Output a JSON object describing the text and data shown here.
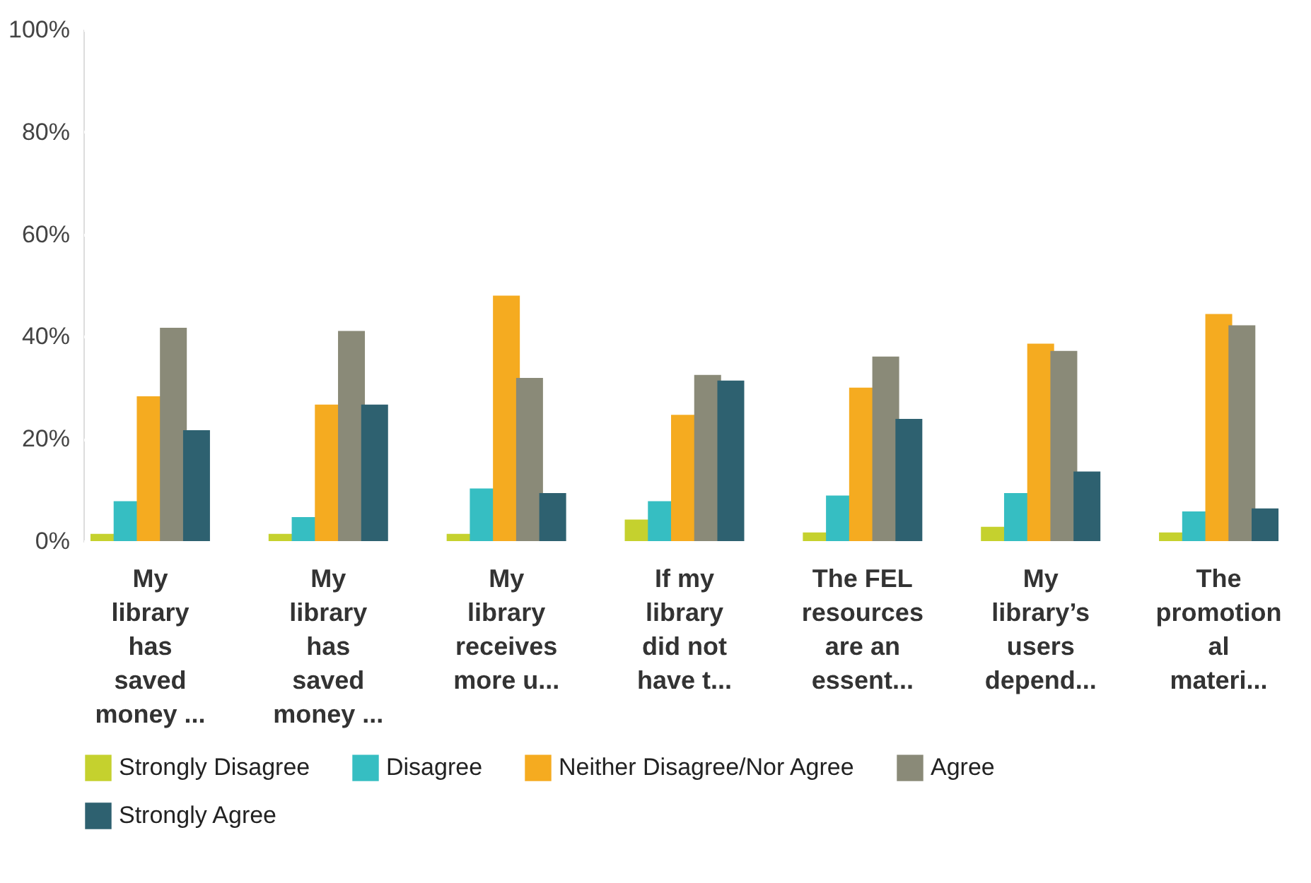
{
  "chart_data": {
    "type": "bar",
    "categories": [
      "My\nlibrary\nhas\nsaved\nmoney ...",
      "My\nlibrary\nhas\nsaved\nmoney ...",
      "My\nlibrary\nreceives\nmore u...",
      "If my\nlibrary\ndid not\nhave t...",
      "The FEL\nresources\nare an\nessent...",
      "My\nlibrary’s\nusers\ndepend...",
      "The\npromotion\nal\nmateri..."
    ],
    "series": [
      {
        "name": "Strongly Disagree",
        "color": "#c5d12e",
        "values": [
          1.4,
          1.4,
          1.4,
          4.2,
          1.7,
          2.8,
          1.7
        ]
      },
      {
        "name": "Disagree",
        "color": "#36bec2",
        "values": [
          7.8,
          4.7,
          10.3,
          7.8,
          8.9,
          9.4,
          5.8
        ]
      },
      {
        "name": "Neither Disagree/Nor Agree",
        "color": "#f5ab20",
        "values": [
          28.3,
          26.7,
          48,
          24.7,
          30,
          38.6,
          44.4
        ]
      },
      {
        "name": "Agree",
        "color": "#8a8a78",
        "values": [
          41.7,
          41.1,
          31.9,
          32.5,
          36.1,
          37.2,
          42.2
        ]
      },
      {
        "name": "Strongly Agree",
        "color": "#2e6170",
        "values": [
          21.7,
          26.7,
          9.4,
          31.4,
          23.9,
          13.6,
          6.4
        ]
      }
    ],
    "ylim": [
      0,
      100
    ],
    "yticks": [
      {
        "value": 0,
        "label": "0%"
      },
      {
        "value": 20,
        "label": "20%"
      },
      {
        "value": 40,
        "label": "40%"
      },
      {
        "value": 60,
        "label": "60%"
      },
      {
        "value": 80,
        "label": "80%"
      },
      {
        "value": 100,
        "label": "100%"
      }
    ],
    "grid": "y",
    "legend": "bottom"
  }
}
